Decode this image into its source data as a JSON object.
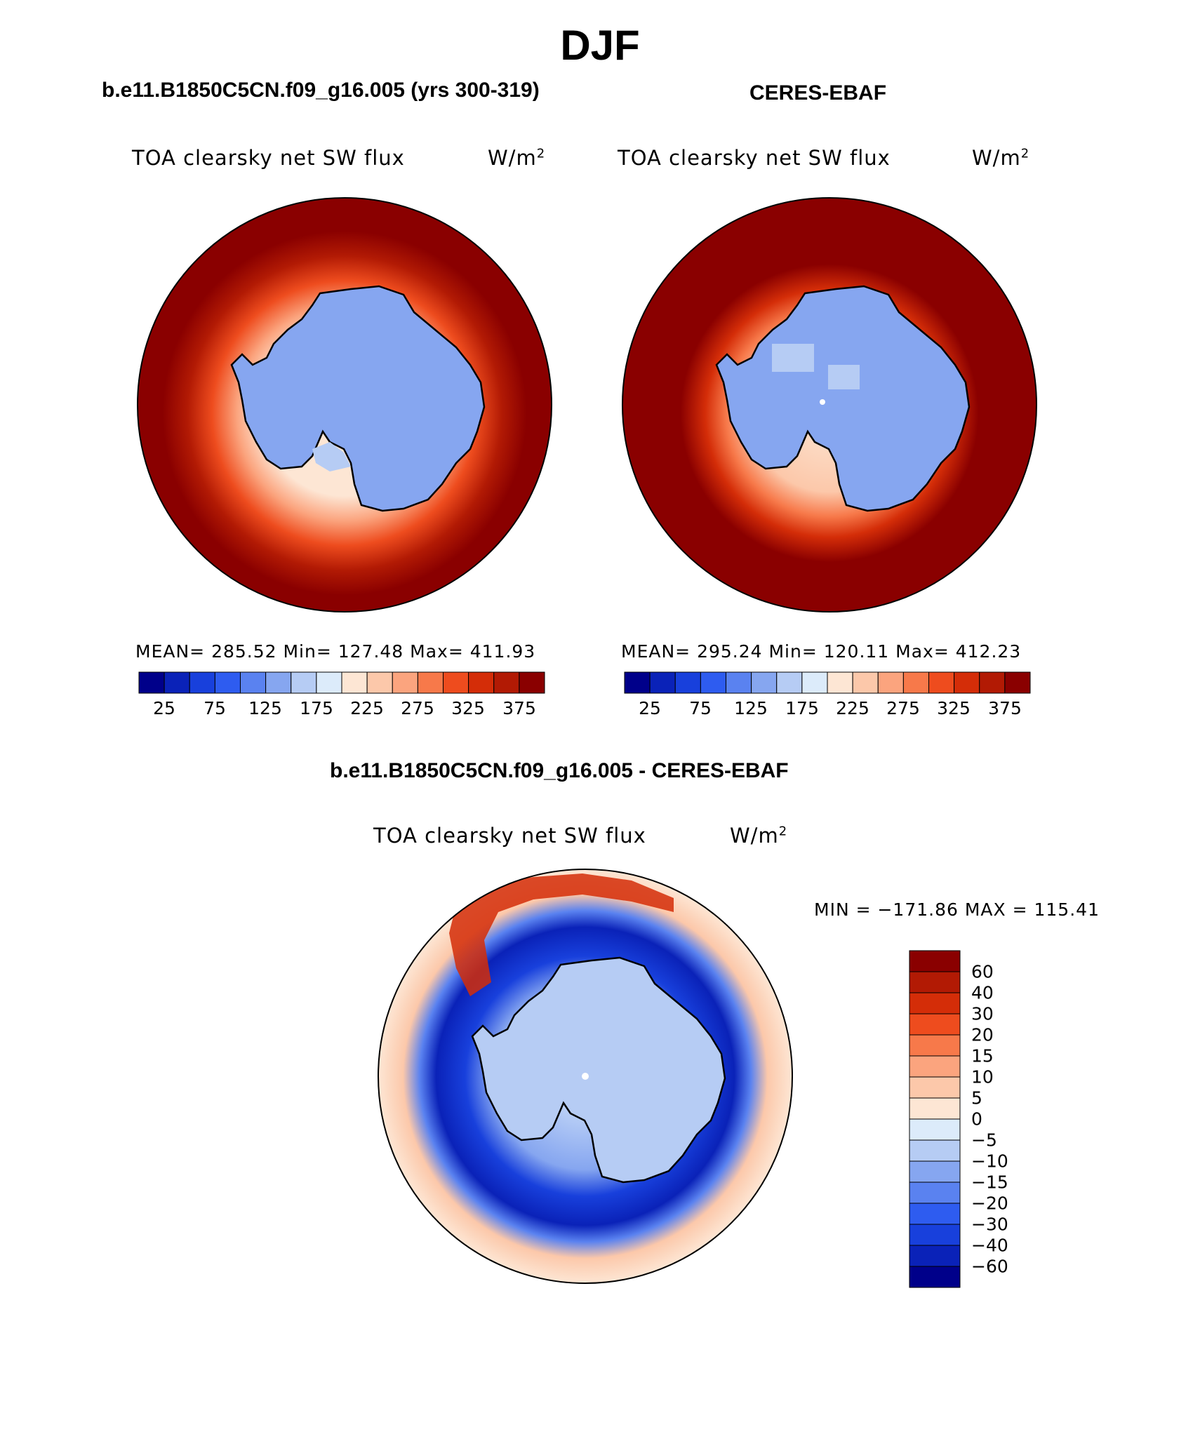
{
  "title": "DJF",
  "panel_left": {
    "case_title": "b.e11.B1850C5CN.f09_g16.005 (yrs 300-319)",
    "variable": "TOA clearsky net SW flux",
    "units": "W/m",
    "units_exp": "2",
    "stats": "MEAN= 285.52   Min= 127.48   Max= 411.93"
  },
  "panel_right": {
    "case_title": "CERES-EBAF",
    "variable": "TOA clearsky net SW flux",
    "units": "W/m",
    "units_exp": "2",
    "stats": "MEAN= 295.24   Min= 120.11   Max= 412.23"
  },
  "panel_diff": {
    "case_title": "b.e11.B1850C5CN.f09_g16.005 - CERES-EBAF",
    "variable": "TOA clearsky net SW flux",
    "units": "W/m",
    "units_exp": "2",
    "minmax": "MIN = −171.86 MAX = 115.41"
  },
  "colorbar_abs": {
    "tick_labels": [
      "25",
      "75",
      "125",
      "175",
      "225",
      "275",
      "325",
      "375"
    ],
    "colors": [
      "#00008a",
      "#0a22b8",
      "#1840dc",
      "#2e5cf0",
      "#5a82f0",
      "#86a6f0",
      "#b6ccf4",
      "#dcebfa",
      "#fde6d4",
      "#fcc8aa",
      "#fba47e",
      "#f7794a",
      "#ee4c1e",
      "#d42d08",
      "#b21a04",
      "#8a0000"
    ]
  },
  "colorbar_diff": {
    "tick_labels": [
      "60",
      "40",
      "30",
      "20",
      "15",
      "10",
      "5",
      "0",
      "−5",
      "−10",
      "−15",
      "−20",
      "−30",
      "−40",
      "−60"
    ],
    "colors": [
      "#8a0000",
      "#b21a04",
      "#d42d08",
      "#ee4c1e",
      "#f7794a",
      "#fba47e",
      "#fcc8aa",
      "#fde6d4",
      "#dcebfa",
      "#b6ccf4",
      "#86a6f0",
      "#5a82f0",
      "#2e5cf0",
      "#1840dc",
      "#0a22b8",
      "#00008a"
    ]
  },
  "map_colors": {
    "deep_red": "#8a0000",
    "land_blue": "#86a6f0",
    "shelf_blue": "#b6ccf4",
    "ocean_pale": "#fde6d4"
  }
}
